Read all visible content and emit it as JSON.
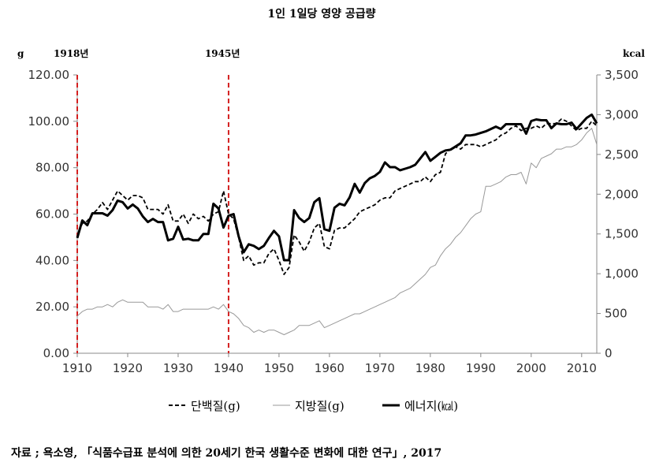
{
  "chart_data": {
    "type": "line",
    "title": "1인 1일당 영양 공급량",
    "left_unit": "g",
    "right_unit": "kcal",
    "xlim": [
      1910,
      2013
    ],
    "ylim_left": [
      0,
      120
    ],
    "ylim_right": [
      0,
      3500
    ],
    "x_ticks": [
      "1910",
      "1920",
      "1930",
      "1940",
      "1950",
      "1960",
      "1970",
      "1980",
      "1990",
      "2000",
      "2010"
    ],
    "y_ticks_left": [
      "0.00",
      "20.00",
      "40.00",
      "60.00",
      "80.00",
      "100.00",
      "120.00"
    ],
    "y_ticks_right": [
      "0",
      "500",
      "1,000",
      "1,500",
      "2,000",
      "2,500",
      "3,000",
      "3,500"
    ],
    "grid": false,
    "legend_position": "bottom",
    "annotations": [
      {
        "label": "1918년",
        "x": 1910,
        "color": "#d42020",
        "style": "dashed"
      },
      {
        "label": "1945년",
        "x": 1940,
        "color": "#d42020",
        "style": "dashed"
      }
    ],
    "series": [
      {
        "name": "단백질(g)",
        "axis": "left",
        "style": "dashed",
        "color": "#000000",
        "x": [
          1910,
          1911,
          1912,
          1913,
          1914,
          1915,
          1916,
          1917,
          1918,
          1919,
          1920,
          1921,
          1922,
          1923,
          1924,
          1925,
          1926,
          1927,
          1928,
          1929,
          1930,
          1931,
          1932,
          1933,
          1934,
          1935,
          1936,
          1937,
          1938,
          1939,
          1940,
          1941,
          1942,
          1943,
          1944,
          1945,
          1946,
          1947,
          1948,
          1949,
          1950,
          1951,
          1952,
          1953,
          1954,
          1955,
          1956,
          1957,
          1958,
          1959,
          1960,
          1961,
          1962,
          1963,
          1964,
          1965,
          1966,
          1967,
          1968,
          1969,
          1970,
          1971,
          1972,
          1973,
          1974,
          1975,
          1976,
          1977,
          1978,
          1979,
          1980,
          1981,
          1982,
          1983,
          1984,
          1985,
          1986,
          1987,
          1988,
          1989,
          1990,
          1991,
          1992,
          1993,
          1994,
          1995,
          1996,
          1997,
          1998,
          1999,
          2000,
          2001,
          2002,
          2003,
          2004,
          2005,
          2006,
          2007,
          2008,
          2009,
          2010,
          2011,
          2012,
          2013
        ],
        "values": [
          50,
          56,
          57,
          60,
          62,
          65,
          62,
          66,
          70,
          68,
          66,
          68,
          68,
          67,
          62,
          62,
          62,
          60,
          64,
          57,
          57,
          60,
          56,
          60,
          58,
          59,
          57,
          60,
          61,
          70,
          60,
          58,
          50,
          40,
          42,
          38,
          39,
          39,
          43,
          45,
          40,
          34,
          37,
          51,
          48,
          44,
          48,
          54,
          56,
          46,
          45,
          53,
          54,
          54,
          56,
          58,
          61,
          62,
          63,
          64,
          66,
          67,
          67,
          70,
          71,
          72,
          73,
          74,
          74,
          76,
          74,
          77,
          78,
          86,
          88,
          89,
          88,
          90,
          90,
          90,
          89,
          90,
          91,
          92,
          94,
          95,
          97,
          98,
          96,
          97,
          97,
          98,
          97,
          99,
          99,
          99,
          101,
          100,
          98,
          96,
          97,
          97,
          100,
          98
        ]
      },
      {
        "name": "지방질(g)",
        "axis": "left",
        "style": "thin",
        "color": "#999999",
        "x": [
          1910,
          1911,
          1912,
          1913,
          1914,
          1915,
          1916,
          1917,
          1918,
          1919,
          1920,
          1921,
          1922,
          1923,
          1924,
          1925,
          1926,
          1927,
          1928,
          1929,
          1930,
          1931,
          1932,
          1933,
          1934,
          1935,
          1936,
          1937,
          1938,
          1939,
          1940,
          1941,
          1942,
          1943,
          1944,
          1945,
          1946,
          1947,
          1948,
          1949,
          1950,
          1951,
          1952,
          1953,
          1954,
          1955,
          1956,
          1957,
          1958,
          1959,
          1960,
          1961,
          1962,
          1963,
          1964,
          1965,
          1966,
          1967,
          1968,
          1969,
          1970,
          1971,
          1972,
          1973,
          1974,
          1975,
          1976,
          1977,
          1978,
          1979,
          1980,
          1981,
          1982,
          1983,
          1984,
          1985,
          1986,
          1987,
          1988,
          1989,
          1990,
          1991,
          1992,
          1993,
          1994,
          1995,
          1996,
          1997,
          1998,
          1999,
          2000,
          2001,
          2002,
          2003,
          2004,
          2005,
          2006,
          2007,
          2008,
          2009,
          2010,
          2011,
          2012,
          2013
        ],
        "values": [
          16,
          18,
          19,
          19,
          20,
          20,
          21,
          20,
          22,
          23,
          22,
          22,
          22,
          22,
          20,
          20,
          20,
          19,
          21,
          18,
          18,
          19,
          19,
          19,
          19,
          19,
          19,
          20,
          19,
          21,
          18,
          17,
          15,
          12,
          11,
          9,
          10,
          9,
          10,
          10,
          9,
          8,
          9,
          10,
          12,
          12,
          12,
          13,
          14,
          11,
          12,
          13,
          14,
          15,
          16,
          17,
          17,
          18,
          19,
          20,
          21,
          22,
          23,
          24,
          26,
          27,
          28,
          30,
          32,
          34,
          37,
          38,
          42,
          45,
          47,
          50,
          52,
          55,
          58,
          60,
          61,
          72,
          72,
          73,
          74,
          76,
          77,
          77,
          78,
          73,
          82,
          80,
          84,
          85,
          86,
          88,
          88,
          89,
          89,
          90,
          92,
          95,
          97,
          90
        ]
      },
      {
        "name": "에너지(㎉)",
        "axis": "right",
        "style": "thick",
        "color": "#000000",
        "x": [
          1910,
          1911,
          1912,
          1913,
          1914,
          1915,
          1916,
          1917,
          1918,
          1919,
          1920,
          1921,
          1922,
          1923,
          1924,
          1925,
          1926,
          1927,
          1928,
          1929,
          1930,
          1931,
          1932,
          1933,
          1934,
          1935,
          1936,
          1937,
          1938,
          1939,
          1940,
          1941,
          1942,
          1943,
          1944,
          1945,
          1946,
          1947,
          1948,
          1949,
          1950,
          1951,
          1952,
          1953,
          1954,
          1955,
          1956,
          1957,
          1958,
          1959,
          1960,
          1961,
          1962,
          1963,
          1964,
          1965,
          1966,
          1967,
          1968,
          1969,
          1970,
          1971,
          1972,
          1973,
          1974,
          1975,
          1976,
          1977,
          1978,
          1979,
          1980,
          1981,
          1982,
          1983,
          1984,
          1985,
          1986,
          1987,
          1988,
          1989,
          1990,
          1991,
          1992,
          1993,
          1994,
          1995,
          1996,
          1997,
          1998,
          1999,
          2000,
          2001,
          2002,
          2003,
          2004,
          2005,
          2006,
          2007,
          2008,
          2009,
          2010,
          2011,
          2012,
          2013
        ],
        "values": [
          1450,
          1670,
          1610,
          1760,
          1760,
          1760,
          1730,
          1800,
          1920,
          1900,
          1820,
          1870,
          1820,
          1720,
          1650,
          1690,
          1650,
          1650,
          1420,
          1440,
          1590,
          1430,
          1440,
          1420,
          1420,
          1500,
          1500,
          1880,
          1820,
          1580,
          1730,
          1750,
          1470,
          1270,
          1370,
          1350,
          1310,
          1350,
          1450,
          1540,
          1470,
          1170,
          1170,
          1800,
          1700,
          1650,
          1700,
          1900,
          1950,
          1560,
          1540,
          1830,
          1880,
          1860,
          1960,
          2130,
          2020,
          2140,
          2200,
          2230,
          2280,
          2400,
          2340,
          2340,
          2300,
          2320,
          2340,
          2370,
          2450,
          2530,
          2420,
          2470,
          2520,
          2550,
          2560,
          2600,
          2640,
          2740,
          2740,
          2750,
          2770,
          2790,
          2820,
          2850,
          2820,
          2880,
          2880,
          2880,
          2880,
          2760,
          2920,
          2940,
          2930,
          2930,
          2830,
          2890,
          2880,
          2880,
          2900,
          2820,
          2890,
          2960,
          3000,
          2890
        ]
      }
    ]
  },
  "source_text": "자료 ; 욕소영, 「식품수급표 분석에 의한 20세기 한국 생활수준 변화에 대한 연구」, 2017"
}
